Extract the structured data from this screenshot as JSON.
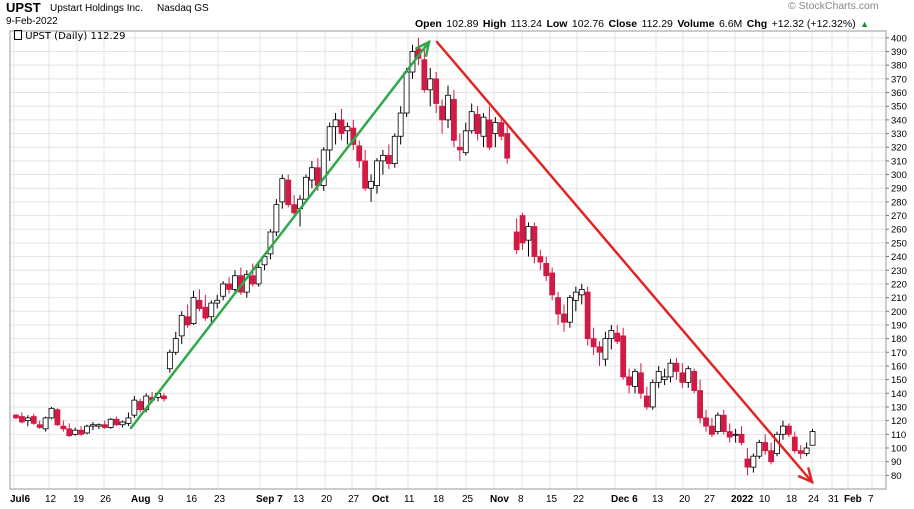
{
  "header": {
    "symbol": "UPST",
    "company": "Upstart Holdings Inc.",
    "exchange": "Nasdaq GS",
    "date": "9-Feb-2022",
    "watermark": "© StockCharts.com",
    "open_label": "Open",
    "open": "102.89",
    "high_label": "High",
    "high": "113.24",
    "low_label": "Low",
    "low": "102.76",
    "close_label": "Close",
    "close": "112.29",
    "volume_label": "Volume",
    "volume": "6.6M",
    "chg_label": "Chg",
    "chg": "+12.32 (+12.32%)",
    "chg_arrow": "▲"
  },
  "legend": {
    "text": "UPST (Daily) 112.29"
  },
  "chart_data": {
    "type": "candlestick",
    "grid": true,
    "y_axis": {
      "side": "right",
      "ylim": [
        70,
        405
      ],
      "ticks": [
        80,
        90,
        100,
        110,
        120,
        130,
        140,
        150,
        160,
        170,
        180,
        190,
        200,
        210,
        220,
        230,
        240,
        250,
        260,
        270,
        280,
        290,
        300,
        310,
        320,
        330,
        340,
        350,
        360,
        370,
        380,
        390,
        400
      ]
    },
    "x_tick_labels": [
      "Jul6",
      "12",
      "19",
      "26",
      "Aug",
      "9",
      "16",
      "23",
      "Sep 7",
      "13",
      "20",
      "27",
      "Oct",
      "11",
      "18",
      "25",
      "Nov",
      "8",
      "15",
      "22",
      "Dec 6",
      "13",
      "20",
      "27",
      "2022",
      "10",
      "18",
      "24",
      "31",
      "Feb",
      "7"
    ],
    "colors": {
      "up_candle": "#ffffff",
      "down_candle": "#d11a44",
      "trend_up": "#2fa84a",
      "trend_down": "#e02525",
      "grid": "#e4e4e4"
    },
    "series": [
      {
        "values": [
          [
            124,
            125,
            121,
            122
          ],
          [
            123,
            126,
            118,
            119
          ],
          [
            120,
            124,
            116,
            122
          ],
          [
            123,
            125,
            117,
            118
          ],
          [
            117,
            120,
            114,
            115
          ],
          [
            114,
            123,
            112,
            122
          ],
          [
            122,
            130,
            121,
            129
          ],
          [
            128,
            129,
            116,
            117
          ],
          [
            116,
            120,
            112,
            114
          ],
          [
            114,
            118,
            108,
            109
          ],
          [
            110,
            115,
            109,
            113
          ],
          [
            113,
            116,
            109,
            110
          ],
          [
            111,
            117,
            110,
            116
          ],
          [
            116,
            119,
            113,
            117
          ],
          [
            116,
            118,
            114,
            117
          ],
          [
            117,
            120,
            114,
            115
          ],
          [
            115,
            122,
            114,
            121
          ],
          [
            121,
            123,
            116,
            117
          ],
          [
            117,
            120,
            115,
            119
          ],
          [
            118,
            126,
            116,
            122
          ],
          [
            124,
            138,
            122,
            135
          ],
          [
            134,
            136,
            126,
            128
          ],
          [
            128,
            140,
            126,
            138
          ],
          [
            137,
            141,
            133,
            135
          ],
          [
            137,
            141,
            134,
            140
          ],
          [
            138,
            140,
            134,
            136
          ],
          [
            158,
            172,
            155,
            170
          ],
          [
            170,
            185,
            168,
            180
          ],
          [
            182,
            200,
            176,
            197
          ],
          [
            196,
            205,
            188,
            190
          ],
          [
            191,
            215,
            190,
            210
          ],
          [
            208,
            216,
            200,
            202
          ],
          [
            203,
            212,
            193,
            195
          ],
          [
            196,
            208,
            192,
            206
          ],
          [
            206,
            212,
            202,
            208
          ],
          [
            211,
            222,
            208,
            220
          ],
          [
            220,
            225,
            213,
            216
          ],
          [
            216,
            230,
            213,
            226
          ],
          [
            226,
            232,
            212,
            214
          ],
          [
            214,
            230,
            210,
            227
          ],
          [
            226,
            235,
            218,
            220
          ],
          [
            220,
            235,
            218,
            232
          ],
          [
            234,
            242,
            230,
            240
          ],
          [
            242,
            260,
            238,
            258
          ],
          [
            258,
            282,
            255,
            278
          ],
          [
            280,
            300,
            275,
            297
          ],
          [
            296,
            300,
            276,
            278
          ],
          [
            278,
            285,
            268,
            272
          ],
          [
            275,
            285,
            262,
            282
          ],
          [
            282,
            300,
            280,
            298
          ],
          [
            296,
            310,
            290,
            305
          ],
          [
            305,
            312,
            288,
            292
          ],
          [
            292,
            320,
            288,
            318
          ],
          [
            318,
            338,
            310,
            335
          ],
          [
            335,
            345,
            322,
            340
          ],
          [
            340,
            348,
            325,
            330
          ],
          [
            332,
            338,
            322,
            335
          ],
          [
            334,
            340,
            318,
            322
          ],
          [
            321,
            325,
            305,
            310
          ],
          [
            310,
            318,
            288,
            290
          ],
          [
            290,
            300,
            280,
            295
          ],
          [
            292,
            312,
            286,
            310
          ],
          [
            310,
            318,
            300,
            314
          ],
          [
            314,
            322,
            304,
            308
          ],
          [
            308,
            330,
            305,
            328
          ],
          [
            328,
            350,
            322,
            345
          ],
          [
            345,
            378,
            342,
            375
          ],
          [
            375,
            395,
            370,
            390
          ],
          [
            392,
            400,
            380,
            385
          ],
          [
            384,
            392,
            360,
            362
          ],
          [
            362,
            378,
            350,
            370
          ],
          [
            370,
            375,
            345,
            352
          ],
          [
            350,
            355,
            330,
            340
          ],
          [
            340,
            365,
            334,
            358
          ],
          [
            355,
            362,
            320,
            325
          ],
          [
            320,
            330,
            310,
            318
          ],
          [
            316,
            338,
            314,
            332
          ],
          [
            332,
            352,
            330,
            346
          ],
          [
            344,
            350,
            325,
            330
          ],
          [
            328,
            345,
            320,
            342
          ],
          [
            340,
            350,
            318,
            320
          ],
          [
            330,
            342,
            320,
            338
          ],
          [
            338,
            342,
            325,
            328
          ],
          [
            330,
            335,
            308,
            312
          ],
          [
            258,
            268,
            242,
            245
          ],
          [
            270,
            272,
            245,
            250
          ],
          [
            252,
            265,
            240,
            262
          ],
          [
            262,
            265,
            235,
            240
          ],
          [
            240,
            245,
            230,
            236
          ],
          [
            235,
            240,
            222,
            226
          ],
          [
            228,
            232,
            208,
            212
          ],
          [
            210,
            214,
            190,
            198
          ],
          [
            198,
            205,
            185,
            192
          ],
          [
            192,
            212,
            188,
            210
          ],
          [
            208,
            218,
            200,
            214
          ],
          [
            212,
            220,
            205,
            216
          ],
          [
            214,
            218,
            175,
            180
          ],
          [
            180,
            188,
            168,
            174
          ],
          [
            174,
            178,
            160,
            170
          ],
          [
            165,
            185,
            160,
            180
          ],
          [
            180,
            190,
            172,
            186
          ],
          [
            184,
            190,
            176,
            178
          ],
          [
            182,
            188,
            150,
            152
          ],
          [
            152,
            158,
            140,
            146
          ],
          [
            145,
            158,
            140,
            156
          ],
          [
            155,
            162,
            136,
            140
          ],
          [
            138,
            145,
            128,
            130
          ],
          [
            130,
            150,
            128,
            148
          ],
          [
            148,
            160,
            144,
            156
          ],
          [
            150,
            158,
            146,
            152
          ],
          [
            152,
            165,
            148,
            162
          ],
          [
            162,
            166,
            150,
            156
          ],
          [
            155,
            162,
            144,
            148
          ],
          [
            148,
            160,
            144,
            158
          ],
          [
            156,
            158,
            140,
            142
          ],
          [
            142,
            150,
            118,
            122
          ],
          [
            122,
            128,
            112,
            116
          ],
          [
            116,
            122,
            108,
            110
          ],
          [
            112,
            126,
            110,
            124
          ],
          [
            124,
            128,
            110,
            112
          ],
          [
            112,
            118,
            104,
            108
          ],
          [
            110,
            114,
            104,
            110
          ],
          [
            110,
            116,
            102,
            104
          ],
          [
            92,
            100,
            80,
            86
          ],
          [
            86,
            96,
            82,
            94
          ],
          [
            94,
            106,
            92,
            104
          ],
          [
            104,
            110,
            95,
            98
          ],
          [
            98,
            104,
            88,
            90
          ],
          [
            96,
            112,
            94,
            110
          ],
          [
            110,
            120,
            106,
            116
          ],
          [
            116,
            118,
            108,
            110
          ],
          [
            108,
            112,
            96,
            98
          ],
          [
            98,
            102,
            92,
            96
          ],
          [
            96,
            104,
            94,
            100
          ],
          [
            102,
            114,
            102,
            112
          ]
        ]
      }
    ],
    "annotations": [
      {
        "kind": "trend_arrow",
        "color": "green",
        "from": [
          "Aug",
          118
        ],
        "to": [
          "Oct 18",
          400
        ]
      },
      {
        "kind": "trend_arrow",
        "color": "red",
        "from": [
          "Oct 18",
          400
        ],
        "to": [
          "Jan 24",
          78
        ]
      }
    ]
  }
}
